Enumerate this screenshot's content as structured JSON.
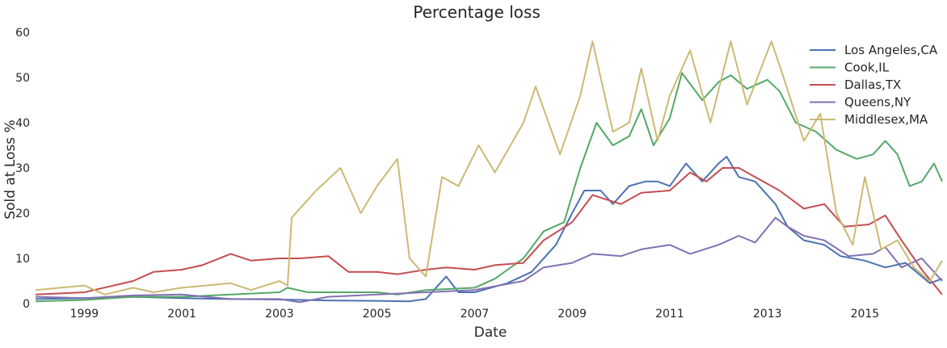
{
  "chart_data": {
    "type": "line",
    "title": "Percentage loss",
    "xlabel": "Date",
    "ylabel": "Sold at Loss %",
    "xlim": [
      "1998-01",
      "2016-08"
    ],
    "ylim": [
      0,
      60
    ],
    "x_ticks": [
      "1999",
      "2001",
      "2003",
      "2005",
      "2007",
      "2009",
      "2011",
      "2013",
      "2015"
    ],
    "y_ticks": [
      "0",
      "10",
      "20",
      "30",
      "40",
      "50",
      "60"
    ],
    "grid": false,
    "legend_position": "top-right",
    "series": [
      {
        "name": "Los Angeles,CA",
        "color": "#4c72b0",
        "points": [
          [
            "1998-01",
            1.0
          ],
          [
            "1999-01",
            1.2
          ],
          [
            "2000-01",
            1.5
          ],
          [
            "2001-01",
            1.2
          ],
          [
            "2002-01",
            1.0
          ],
          [
            "2003-01",
            0.9
          ],
          [
            "2004-01",
            0.7
          ],
          [
            "2005-01",
            0.6
          ],
          [
            "2005-09",
            0.5
          ],
          [
            "2006-01",
            1.0
          ],
          [
            "2006-06",
            6.0
          ],
          [
            "2006-09",
            2.5
          ],
          [
            "2007-01",
            2.5
          ],
          [
            "2007-09",
            4.5
          ],
          [
            "2008-03",
            7.0
          ],
          [
            "2008-09",
            13.0
          ],
          [
            "2009-01",
            20.0
          ],
          [
            "2009-04",
            25.0
          ],
          [
            "2009-08",
            25.0
          ],
          [
            "2009-11",
            22.0
          ],
          [
            "2010-03",
            26.0
          ],
          [
            "2010-07",
            27.0
          ],
          [
            "2010-10",
            27.0
          ],
          [
            "2011-01",
            26.0
          ],
          [
            "2011-05",
            31.0
          ],
          [
            "2011-09",
            27.0
          ],
          [
            "2012-01",
            31.0
          ],
          [
            "2012-03",
            32.5
          ],
          [
            "2012-06",
            28.0
          ],
          [
            "2012-10",
            27.0
          ],
          [
            "2013-03",
            22.0
          ],
          [
            "2013-06",
            17.0
          ],
          [
            "2013-10",
            14.0
          ],
          [
            "2014-03",
            13.0
          ],
          [
            "2014-07",
            10.5
          ],
          [
            "2015-01",
            9.5
          ],
          [
            "2015-06",
            8.0
          ],
          [
            "2015-11",
            9.0
          ],
          [
            "2016-05",
            4.5
          ],
          [
            "2016-08",
            5.5
          ]
        ]
      },
      {
        "name": "Cook,IL",
        "color": "#55a868",
        "points": [
          [
            "1998-01",
            0.5
          ],
          [
            "1999-01",
            0.8
          ],
          [
            "2000-01",
            1.5
          ],
          [
            "2001-01",
            1.5
          ],
          [
            "2002-01",
            2.0
          ],
          [
            "2003-01",
            2.5
          ],
          [
            "2003-03",
            3.5
          ],
          [
            "2003-08",
            2.5
          ],
          [
            "2004-01",
            2.5
          ],
          [
            "2005-01",
            2.5
          ],
          [
            "2005-06",
            2.0
          ],
          [
            "2006-01",
            3.0
          ],
          [
            "2007-01",
            3.5
          ],
          [
            "2007-06",
            5.5
          ],
          [
            "2008-01",
            10.0
          ],
          [
            "2008-06",
            16.0
          ],
          [
            "2008-11",
            18.0
          ],
          [
            "2009-03",
            30.0
          ],
          [
            "2009-07",
            40.0
          ],
          [
            "2009-11",
            35.0
          ],
          [
            "2010-03",
            37.0
          ],
          [
            "2010-06",
            43.0
          ],
          [
            "2010-09",
            35.0
          ],
          [
            "2011-01",
            41.0
          ],
          [
            "2011-04",
            51.0
          ],
          [
            "2011-09",
            45.0
          ],
          [
            "2012-01",
            49.0
          ],
          [
            "2012-04",
            50.5
          ],
          [
            "2012-08",
            47.5
          ],
          [
            "2013-01",
            49.5
          ],
          [
            "2013-04",
            47.0
          ],
          [
            "2013-08",
            40.0
          ],
          [
            "2014-01",
            38.0
          ],
          [
            "2014-06",
            34.0
          ],
          [
            "2014-11",
            32.0
          ],
          [
            "2015-03",
            33.0
          ],
          [
            "2015-06",
            36.0
          ],
          [
            "2015-09",
            33.0
          ],
          [
            "2015-12",
            26.0
          ],
          [
            "2016-03",
            27.0
          ],
          [
            "2016-06",
            31.0
          ],
          [
            "2016-08",
            27.0
          ]
        ]
      },
      {
        "name": "Dallas,TX",
        "color": "#c44e52",
        "points": [
          [
            "1998-01",
            2.0
          ],
          [
            "1999-01",
            2.5
          ],
          [
            "2000-01",
            5.0
          ],
          [
            "2000-06",
            7.0
          ],
          [
            "2001-01",
            7.5
          ],
          [
            "2001-06",
            8.5
          ],
          [
            "2002-01",
            11.0
          ],
          [
            "2002-06",
            9.5
          ],
          [
            "2003-01",
            10.0
          ],
          [
            "2003-06",
            10.0
          ],
          [
            "2004-01",
            10.5
          ],
          [
            "2004-06",
            7.0
          ],
          [
            "2005-01",
            7.0
          ],
          [
            "2005-06",
            6.5
          ],
          [
            "2006-01",
            7.5
          ],
          [
            "2006-06",
            8.0
          ],
          [
            "2007-01",
            7.5
          ],
          [
            "2007-06",
            8.5
          ],
          [
            "2008-01",
            9.0
          ],
          [
            "2008-06",
            14.0
          ],
          [
            "2009-01",
            18.0
          ],
          [
            "2009-06",
            24.0
          ],
          [
            "2010-01",
            22.0
          ],
          [
            "2010-06",
            24.5
          ],
          [
            "2011-01",
            25.0
          ],
          [
            "2011-06",
            29.0
          ],
          [
            "2011-10",
            27.0
          ],
          [
            "2012-02",
            30.0
          ],
          [
            "2012-06",
            30.0
          ],
          [
            "2012-10",
            28.0
          ],
          [
            "2013-04",
            25.0
          ],
          [
            "2013-10",
            21.0
          ],
          [
            "2014-03",
            22.0
          ],
          [
            "2014-08",
            17.0
          ],
          [
            "2015-02",
            17.5
          ],
          [
            "2015-06",
            19.5
          ],
          [
            "2015-10",
            14.0
          ],
          [
            "2016-03",
            7.5
          ],
          [
            "2016-08",
            2.0
          ]
        ]
      },
      {
        "name": "Queens,NY",
        "color": "#8172b2",
        "points": [
          [
            "1998-01",
            1.5
          ],
          [
            "1999-01",
            1.2
          ],
          [
            "2000-01",
            1.8
          ],
          [
            "2001-01",
            2.0
          ],
          [
            "2002-01",
            1.0
          ],
          [
            "2003-01",
            1.0
          ],
          [
            "2003-06",
            0.3
          ],
          [
            "2004-01",
            1.5
          ],
          [
            "2005-01",
            2.0
          ],
          [
            "2006-01",
            2.5
          ],
          [
            "2007-01",
            3.0
          ],
          [
            "2008-01",
            5.0
          ],
          [
            "2008-06",
            8.0
          ],
          [
            "2009-01",
            9.0
          ],
          [
            "2009-06",
            11.0
          ],
          [
            "2010-01",
            10.5
          ],
          [
            "2010-06",
            12.0
          ],
          [
            "2011-01",
            13.0
          ],
          [
            "2011-06",
            11.0
          ],
          [
            "2012-01",
            13.0
          ],
          [
            "2012-06",
            15.0
          ],
          [
            "2012-10",
            13.5
          ],
          [
            "2013-03",
            19.0
          ],
          [
            "2013-06",
            17.0
          ],
          [
            "2013-10",
            15.0
          ],
          [
            "2014-03",
            14.0
          ],
          [
            "2014-09",
            10.5
          ],
          [
            "2015-03",
            11.0
          ],
          [
            "2015-06",
            12.5
          ],
          [
            "2015-10",
            8.0
          ],
          [
            "2016-03",
            10.0
          ],
          [
            "2016-08",
            5.0
          ]
        ]
      },
      {
        "name": "Middlesex,MA",
        "color": "#ccb974",
        "points": [
          [
            "1998-01",
            3.0
          ],
          [
            "1999-01",
            4.0
          ],
          [
            "1999-06",
            2.0
          ],
          [
            "2000-01",
            3.5
          ],
          [
            "2000-06",
            2.5
          ],
          [
            "2001-01",
            3.5
          ],
          [
            "2002-01",
            4.5
          ],
          [
            "2002-06",
            3.0
          ],
          [
            "2003-01",
            5.0
          ],
          [
            "2003-03",
            4.0
          ],
          [
            "2003-04",
            19.0
          ],
          [
            "2003-10",
            25.0
          ],
          [
            "2004-04",
            30.0
          ],
          [
            "2004-09",
            20.0
          ],
          [
            "2005-01",
            26.0
          ],
          [
            "2005-06",
            32.0
          ],
          [
            "2005-09",
            10.0
          ],
          [
            "2006-01",
            6.0
          ],
          [
            "2006-05",
            28.0
          ],
          [
            "2006-09",
            26.0
          ],
          [
            "2007-02",
            35.0
          ],
          [
            "2007-06",
            29.0
          ],
          [
            "2008-01",
            40.0
          ],
          [
            "2008-04",
            48.0
          ],
          [
            "2008-10",
            33.0
          ],
          [
            "2009-03",
            46.0
          ],
          [
            "2009-06",
            58.0
          ],
          [
            "2009-11",
            38.0
          ],
          [
            "2010-03",
            40.0
          ],
          [
            "2010-06",
            52.0
          ],
          [
            "2010-10",
            36.0
          ],
          [
            "2011-01",
            46.0
          ],
          [
            "2011-06",
            56.0
          ],
          [
            "2011-11",
            40.0
          ],
          [
            "2012-04",
            58.0
          ],
          [
            "2012-08",
            44.0
          ],
          [
            "2013-02",
            58.0
          ],
          [
            "2013-05",
            50.0
          ],
          [
            "2013-10",
            36.0
          ],
          [
            "2014-02",
            42.0
          ],
          [
            "2014-06",
            20.0
          ],
          [
            "2014-10",
            13.0
          ],
          [
            "2015-01",
            28.0
          ],
          [
            "2015-05",
            12.0
          ],
          [
            "2015-09",
            14.0
          ],
          [
            "2016-01",
            8.0
          ],
          [
            "2016-05",
            5.0
          ],
          [
            "2016-08",
            9.5
          ]
        ]
      }
    ]
  }
}
